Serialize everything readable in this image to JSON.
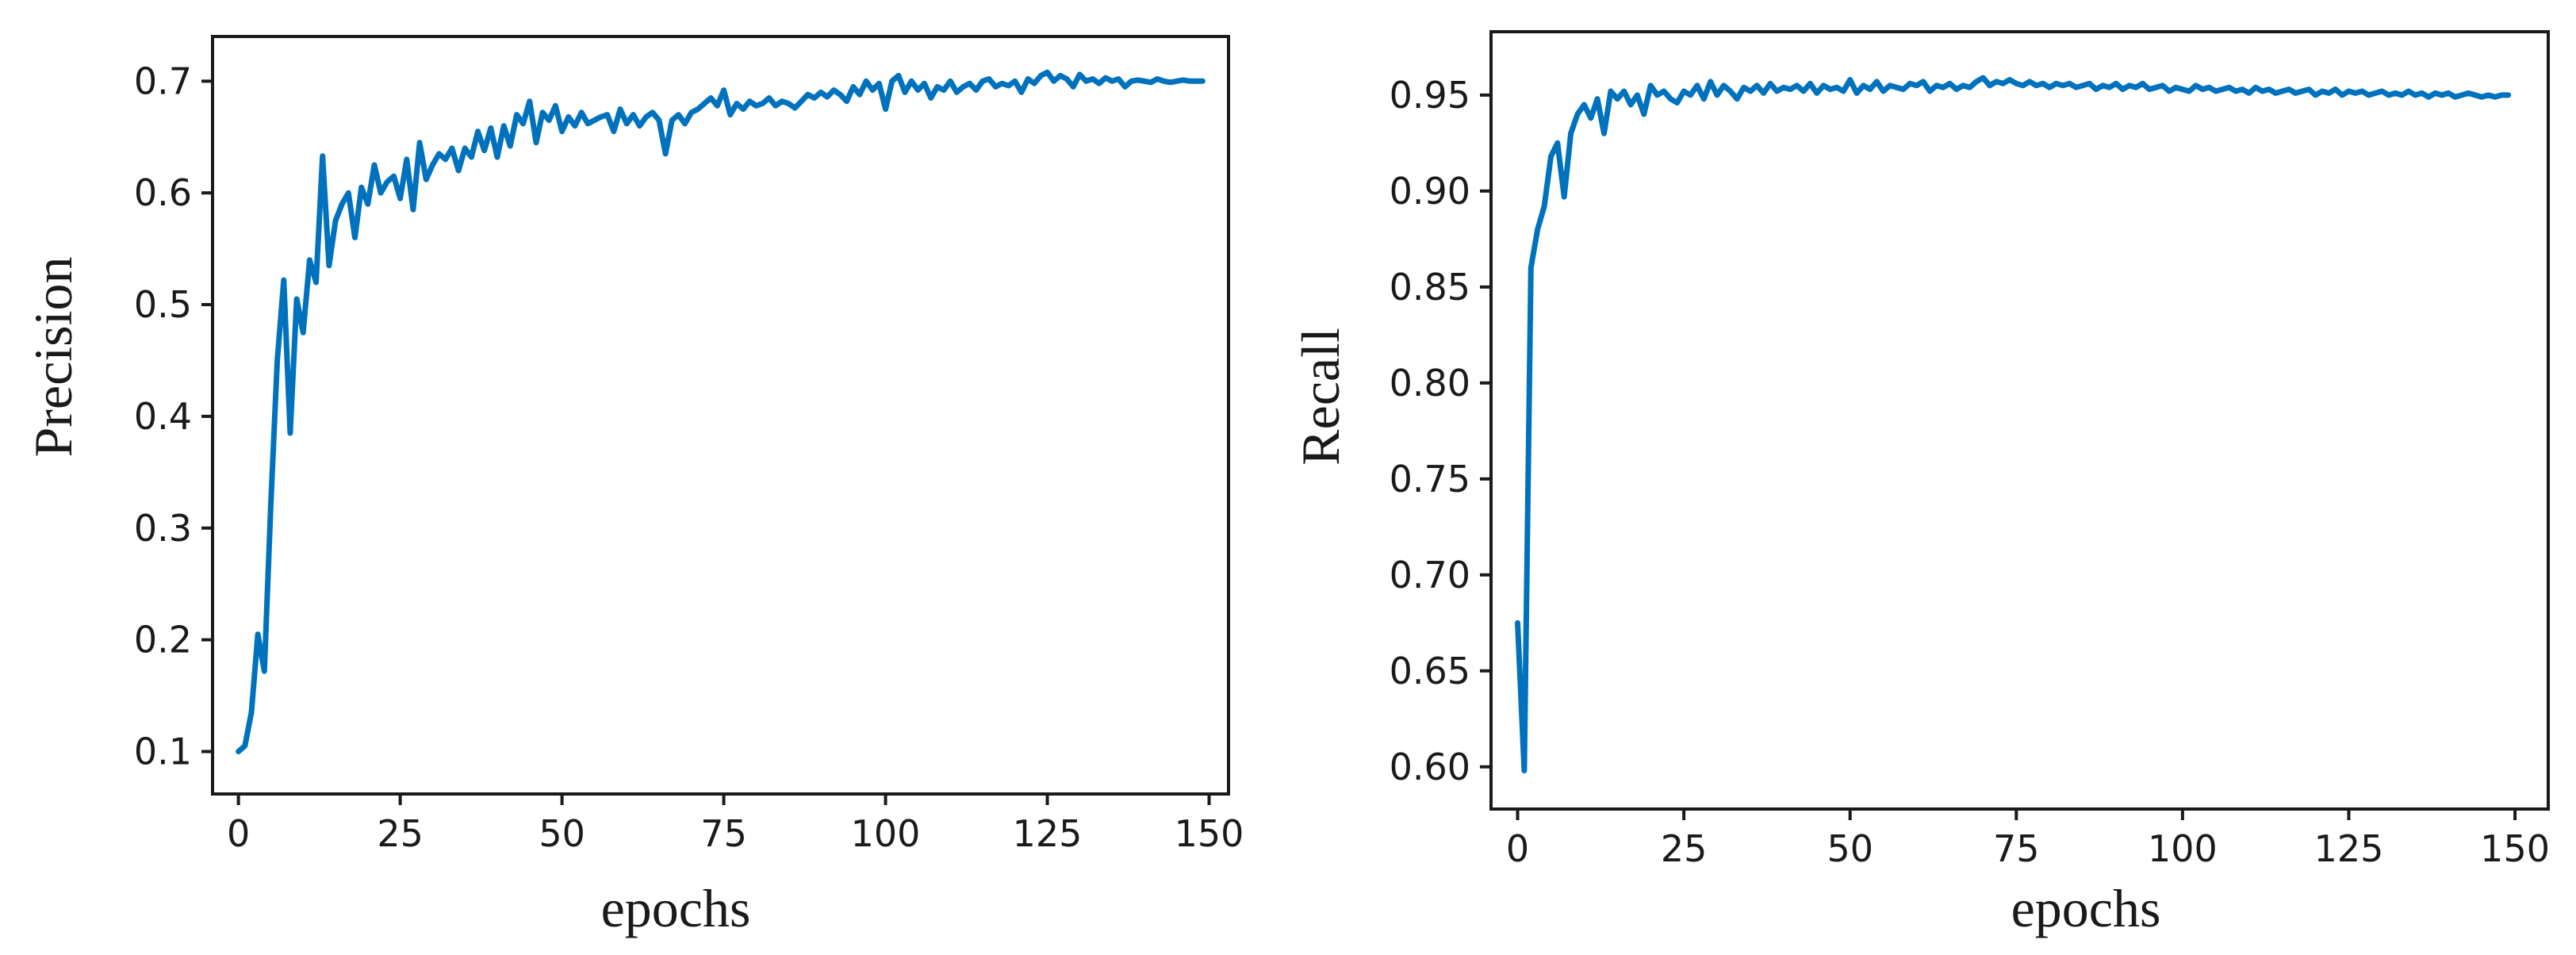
{
  "colors": {
    "series": "#0072BD",
    "axis": "#1a1a1a",
    "background": "#ffffff"
  },
  "chart_data": [
    {
      "type": "line",
      "title": "",
      "xlabel": "epochs",
      "ylabel": "Precision",
      "xlim": [
        -4,
        153
      ],
      "ylim": [
        0.062,
        0.74
      ],
      "xticks": [
        0,
        25,
        50,
        75,
        100,
        125,
        150
      ],
      "xtick_labels": [
        "0",
        "25",
        "50",
        "75",
        "100",
        "125",
        "150"
      ],
      "yticks": [
        0.1,
        0.2,
        0.3,
        0.4,
        0.5,
        0.6,
        0.7
      ],
      "ytick_labels": [
        "0.1",
        "0.2",
        "0.3",
        "0.4",
        "0.5",
        "0.6",
        "0.7"
      ],
      "grid": false,
      "legend": "none",
      "series": [
        {
          "x": [
            0,
            1,
            2,
            3,
            4,
            5,
            6,
            7,
            8,
            9,
            10,
            11,
            12,
            13,
            14,
            15,
            16,
            17,
            18,
            19,
            20,
            21,
            22,
            23,
            24,
            25,
            26,
            27,
            28,
            29,
            30,
            31,
            32,
            33,
            34,
            35,
            36,
            37,
            38,
            39,
            40,
            41,
            42,
            43,
            44,
            45,
            46,
            47,
            48,
            49,
            50,
            51,
            52,
            53,
            54,
            55,
            56,
            57,
            58,
            59,
            60,
            61,
            62,
            63,
            64,
            65,
            66,
            67,
            68,
            69,
            70,
            71,
            72,
            73,
            74,
            75,
            76,
            77,
            78,
            79,
            80,
            81,
            82,
            83,
            84,
            85,
            86,
            87,
            88,
            89,
            90,
            91,
            92,
            93,
            94,
            95,
            96,
            97,
            98,
            99,
            100,
            101,
            102,
            103,
            104,
            105,
            106,
            107,
            108,
            109,
            110,
            111,
            112,
            113,
            114,
            115,
            116,
            117,
            118,
            119,
            120,
            121,
            122,
            123,
            124,
            125,
            126,
            127,
            128,
            129,
            130,
            131,
            132,
            133,
            134,
            135,
            136,
            137,
            138,
            139,
            140,
            141,
            142,
            143,
            144,
            145,
            146,
            147,
            148,
            149
          ],
          "y": [
            0.1,
            0.105,
            0.135,
            0.205,
            0.172,
            0.32,
            0.45,
            0.522,
            0.385,
            0.505,
            0.475,
            0.54,
            0.52,
            0.633,
            0.535,
            0.575,
            0.59,
            0.6,
            0.56,
            0.605,
            0.59,
            0.625,
            0.6,
            0.61,
            0.615,
            0.595,
            0.63,
            0.585,
            0.645,
            0.612,
            0.625,
            0.635,
            0.63,
            0.64,
            0.62,
            0.64,
            0.632,
            0.655,
            0.638,
            0.658,
            0.632,
            0.66,
            0.642,
            0.67,
            0.662,
            0.682,
            0.645,
            0.672,
            0.665,
            0.678,
            0.655,
            0.668,
            0.66,
            0.672,
            0.662,
            0.665,
            0.668,
            0.67,
            0.655,
            0.675,
            0.662,
            0.67,
            0.66,
            0.668,
            0.672,
            0.665,
            0.635,
            0.665,
            0.67,
            0.662,
            0.672,
            0.675,
            0.68,
            0.685,
            0.678,
            0.692,
            0.67,
            0.68,
            0.675,
            0.682,
            0.678,
            0.68,
            0.685,
            0.678,
            0.682,
            0.68,
            0.676,
            0.682,
            0.688,
            0.685,
            0.69,
            0.686,
            0.692,
            0.688,
            0.682,
            0.695,
            0.688,
            0.7,
            0.692,
            0.698,
            0.675,
            0.7,
            0.705,
            0.69,
            0.7,
            0.692,
            0.698,
            0.685,
            0.695,
            0.692,
            0.7,
            0.69,
            0.695,
            0.698,
            0.692,
            0.7,
            0.702,
            0.695,
            0.698,
            0.696,
            0.7,
            0.69,
            0.702,
            0.698,
            0.705,
            0.708,
            0.7,
            0.705,
            0.702,
            0.695,
            0.706,
            0.7,
            0.702,
            0.698,
            0.703,
            0.7,
            0.702,
            0.695,
            0.7,
            0.701,
            0.7,
            0.699,
            0.702,
            0.7,
            0.699,
            0.7,
            0.701,
            0.7,
            0.7,
            0.7
          ]
        }
      ]
    },
    {
      "type": "line",
      "title": "",
      "xlabel": "epochs",
      "ylabel": "Recall",
      "xlim": [
        -4,
        155
      ],
      "ylim": [
        0.578,
        0.983
      ],
      "xticks": [
        0,
        25,
        50,
        75,
        100,
        125,
        150
      ],
      "xtick_labels": [
        "0",
        "25",
        "50",
        "75",
        "100",
        "125",
        "150"
      ],
      "yticks": [
        0.6,
        0.65,
        0.7,
        0.75,
        0.8,
        0.85,
        0.9,
        0.95
      ],
      "ytick_labels": [
        "0.60",
        "0.65",
        "0.70",
        "0.75",
        "0.80",
        "0.85",
        "0.90",
        "0.95"
      ],
      "grid": false,
      "legend": "none",
      "series": [
        {
          "x": [
            0,
            1,
            2,
            3,
            4,
            5,
            6,
            7,
            8,
            9,
            10,
            11,
            12,
            13,
            14,
            15,
            16,
            17,
            18,
            19,
            20,
            21,
            22,
            23,
            24,
            25,
            26,
            27,
            28,
            29,
            30,
            31,
            32,
            33,
            34,
            35,
            36,
            37,
            38,
            39,
            40,
            41,
            42,
            43,
            44,
            45,
            46,
            47,
            48,
            49,
            50,
            51,
            52,
            53,
            54,
            55,
            56,
            57,
            58,
            59,
            60,
            61,
            62,
            63,
            64,
            65,
            66,
            67,
            68,
            69,
            70,
            71,
            72,
            73,
            74,
            75,
            76,
            77,
            78,
            79,
            80,
            81,
            82,
            83,
            84,
            85,
            86,
            87,
            88,
            89,
            90,
            91,
            92,
            93,
            94,
            95,
            96,
            97,
            98,
            99,
            100,
            101,
            102,
            103,
            104,
            105,
            106,
            107,
            108,
            109,
            110,
            111,
            112,
            113,
            114,
            115,
            116,
            117,
            118,
            119,
            120,
            121,
            122,
            123,
            124,
            125,
            126,
            127,
            128,
            129,
            130,
            131,
            132,
            133,
            134,
            135,
            136,
            137,
            138,
            139,
            140,
            141,
            142,
            143,
            144,
            145,
            146,
            147,
            148,
            149
          ],
          "y": [
            0.675,
            0.598,
            0.86,
            0.88,
            0.892,
            0.918,
            0.925,
            0.897,
            0.93,
            0.94,
            0.945,
            0.938,
            0.948,
            0.93,
            0.952,
            0.948,
            0.952,
            0.945,
            0.95,
            0.94,
            0.955,
            0.95,
            0.952,
            0.948,
            0.946,
            0.952,
            0.95,
            0.955,
            0.948,
            0.957,
            0.95,
            0.955,
            0.952,
            0.948,
            0.954,
            0.952,
            0.955,
            0.951,
            0.956,
            0.952,
            0.954,
            0.953,
            0.955,
            0.952,
            0.956,
            0.951,
            0.955,
            0.953,
            0.954,
            0.952,
            0.958,
            0.951,
            0.955,
            0.953,
            0.957,
            0.952,
            0.955,
            0.954,
            0.953,
            0.956,
            0.955,
            0.957,
            0.952,
            0.955,
            0.954,
            0.956,
            0.953,
            0.955,
            0.954,
            0.957,
            0.959,
            0.955,
            0.957,
            0.956,
            0.958,
            0.956,
            0.955,
            0.957,
            0.955,
            0.956,
            0.954,
            0.956,
            0.955,
            0.956,
            0.954,
            0.955,
            0.956,
            0.953,
            0.955,
            0.954,
            0.956,
            0.953,
            0.955,
            0.954,
            0.956,
            0.953,
            0.954,
            0.955,
            0.952,
            0.954,
            0.953,
            0.952,
            0.955,
            0.953,
            0.954,
            0.952,
            0.953,
            0.954,
            0.952,
            0.953,
            0.951,
            0.954,
            0.952,
            0.953,
            0.951,
            0.952,
            0.953,
            0.951,
            0.952,
            0.953,
            0.95,
            0.952,
            0.951,
            0.953,
            0.95,
            0.952,
            0.951,
            0.952,
            0.95,
            0.951,
            0.952,
            0.95,
            0.951,
            0.95,
            0.952,
            0.95,
            0.951,
            0.949,
            0.951,
            0.95,
            0.951,
            0.949,
            0.95,
            0.951,
            0.95,
            0.949,
            0.95,
            0.949,
            0.95,
            0.95
          ]
        }
      ]
    }
  ]
}
